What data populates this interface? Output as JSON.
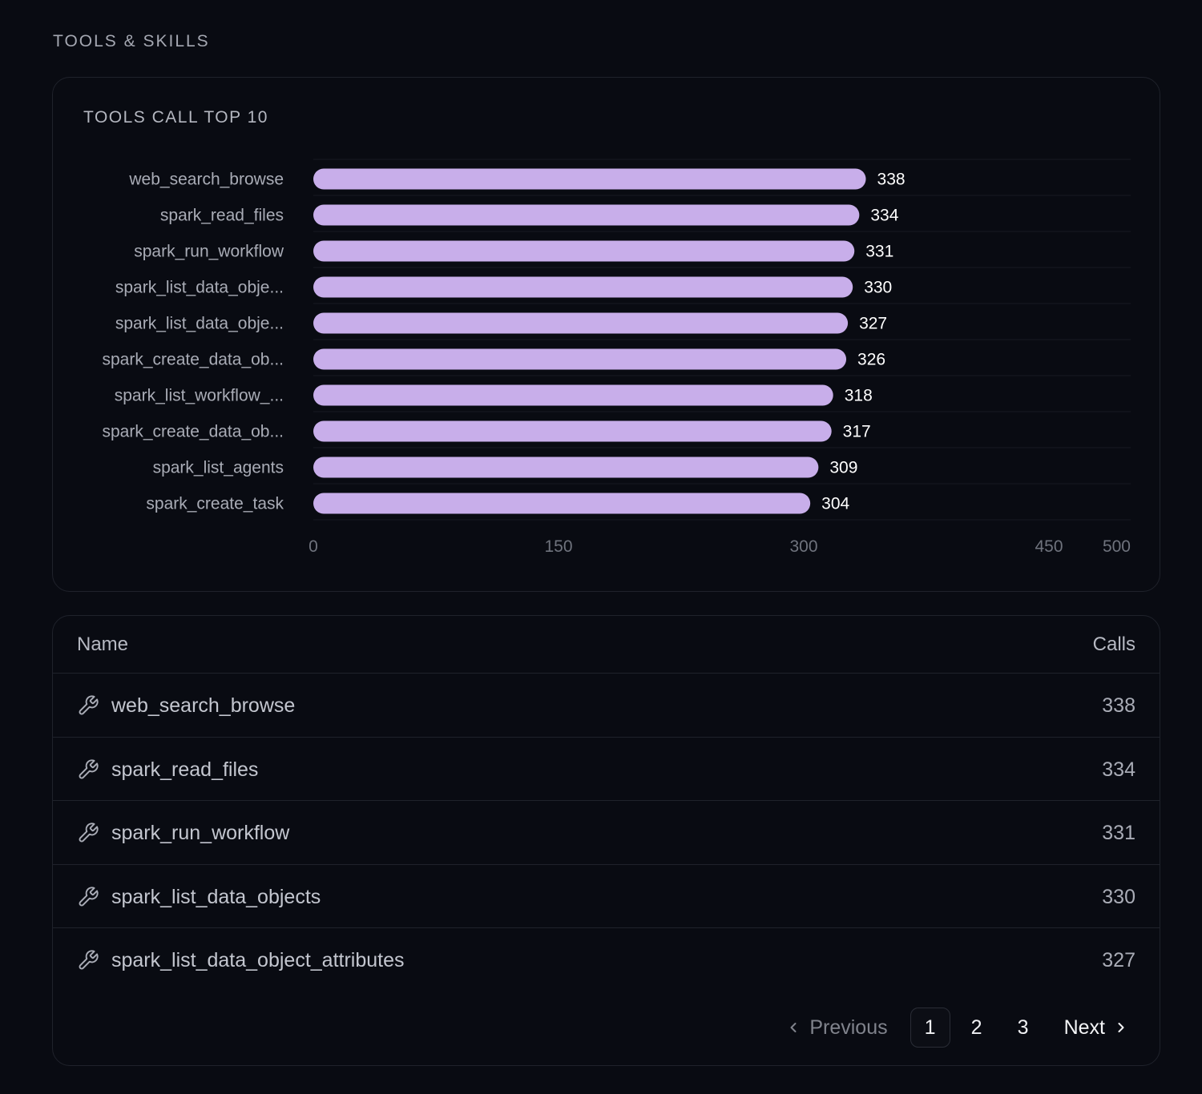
{
  "section": {
    "title": "TOOLS & SKILLS"
  },
  "chart_card": {
    "title": "TOOLS CALL TOP 10"
  },
  "chart_data": {
    "type": "bar",
    "orientation": "horizontal",
    "title": "TOOLS CALL TOP 10",
    "categories": [
      "web_search_browse",
      "spark_read_files",
      "spark_run_workflow",
      "spark_list_data_obje...",
      "spark_list_data_obje...",
      "spark_create_data_ob...",
      "spark_list_workflow_...",
      "spark_create_data_ob...",
      "spark_list_agents",
      "spark_create_task"
    ],
    "values": [
      338,
      334,
      331,
      330,
      327,
      326,
      318,
      317,
      309,
      304
    ],
    "xlim": [
      0,
      500
    ],
    "xticks": [
      0,
      150,
      300,
      450,
      500
    ],
    "grid": true,
    "bar_color": "#c8aeea",
    "value_labels": true
  },
  "table": {
    "headers": {
      "name": "Name",
      "calls": "Calls"
    },
    "rows": [
      {
        "icon": "wrench-icon",
        "name": "web_search_browse",
        "calls": "338"
      },
      {
        "icon": "wrench-icon",
        "name": "spark_read_files",
        "calls": "334"
      },
      {
        "icon": "wrench-icon",
        "name": "spark_run_workflow",
        "calls": "331"
      },
      {
        "icon": "wrench-icon",
        "name": "spark_list_data_objects",
        "calls": "330"
      },
      {
        "icon": "wrench-icon",
        "name": "spark_list_data_object_attributes",
        "calls": "327"
      }
    ]
  },
  "pagination": {
    "previous": "Previous",
    "next": "Next",
    "pages": [
      "1",
      "2",
      "3"
    ],
    "current": "1"
  },
  "colors": {
    "background": "#090b12",
    "border": "#1f222b",
    "bar": "#c8aeea"
  }
}
